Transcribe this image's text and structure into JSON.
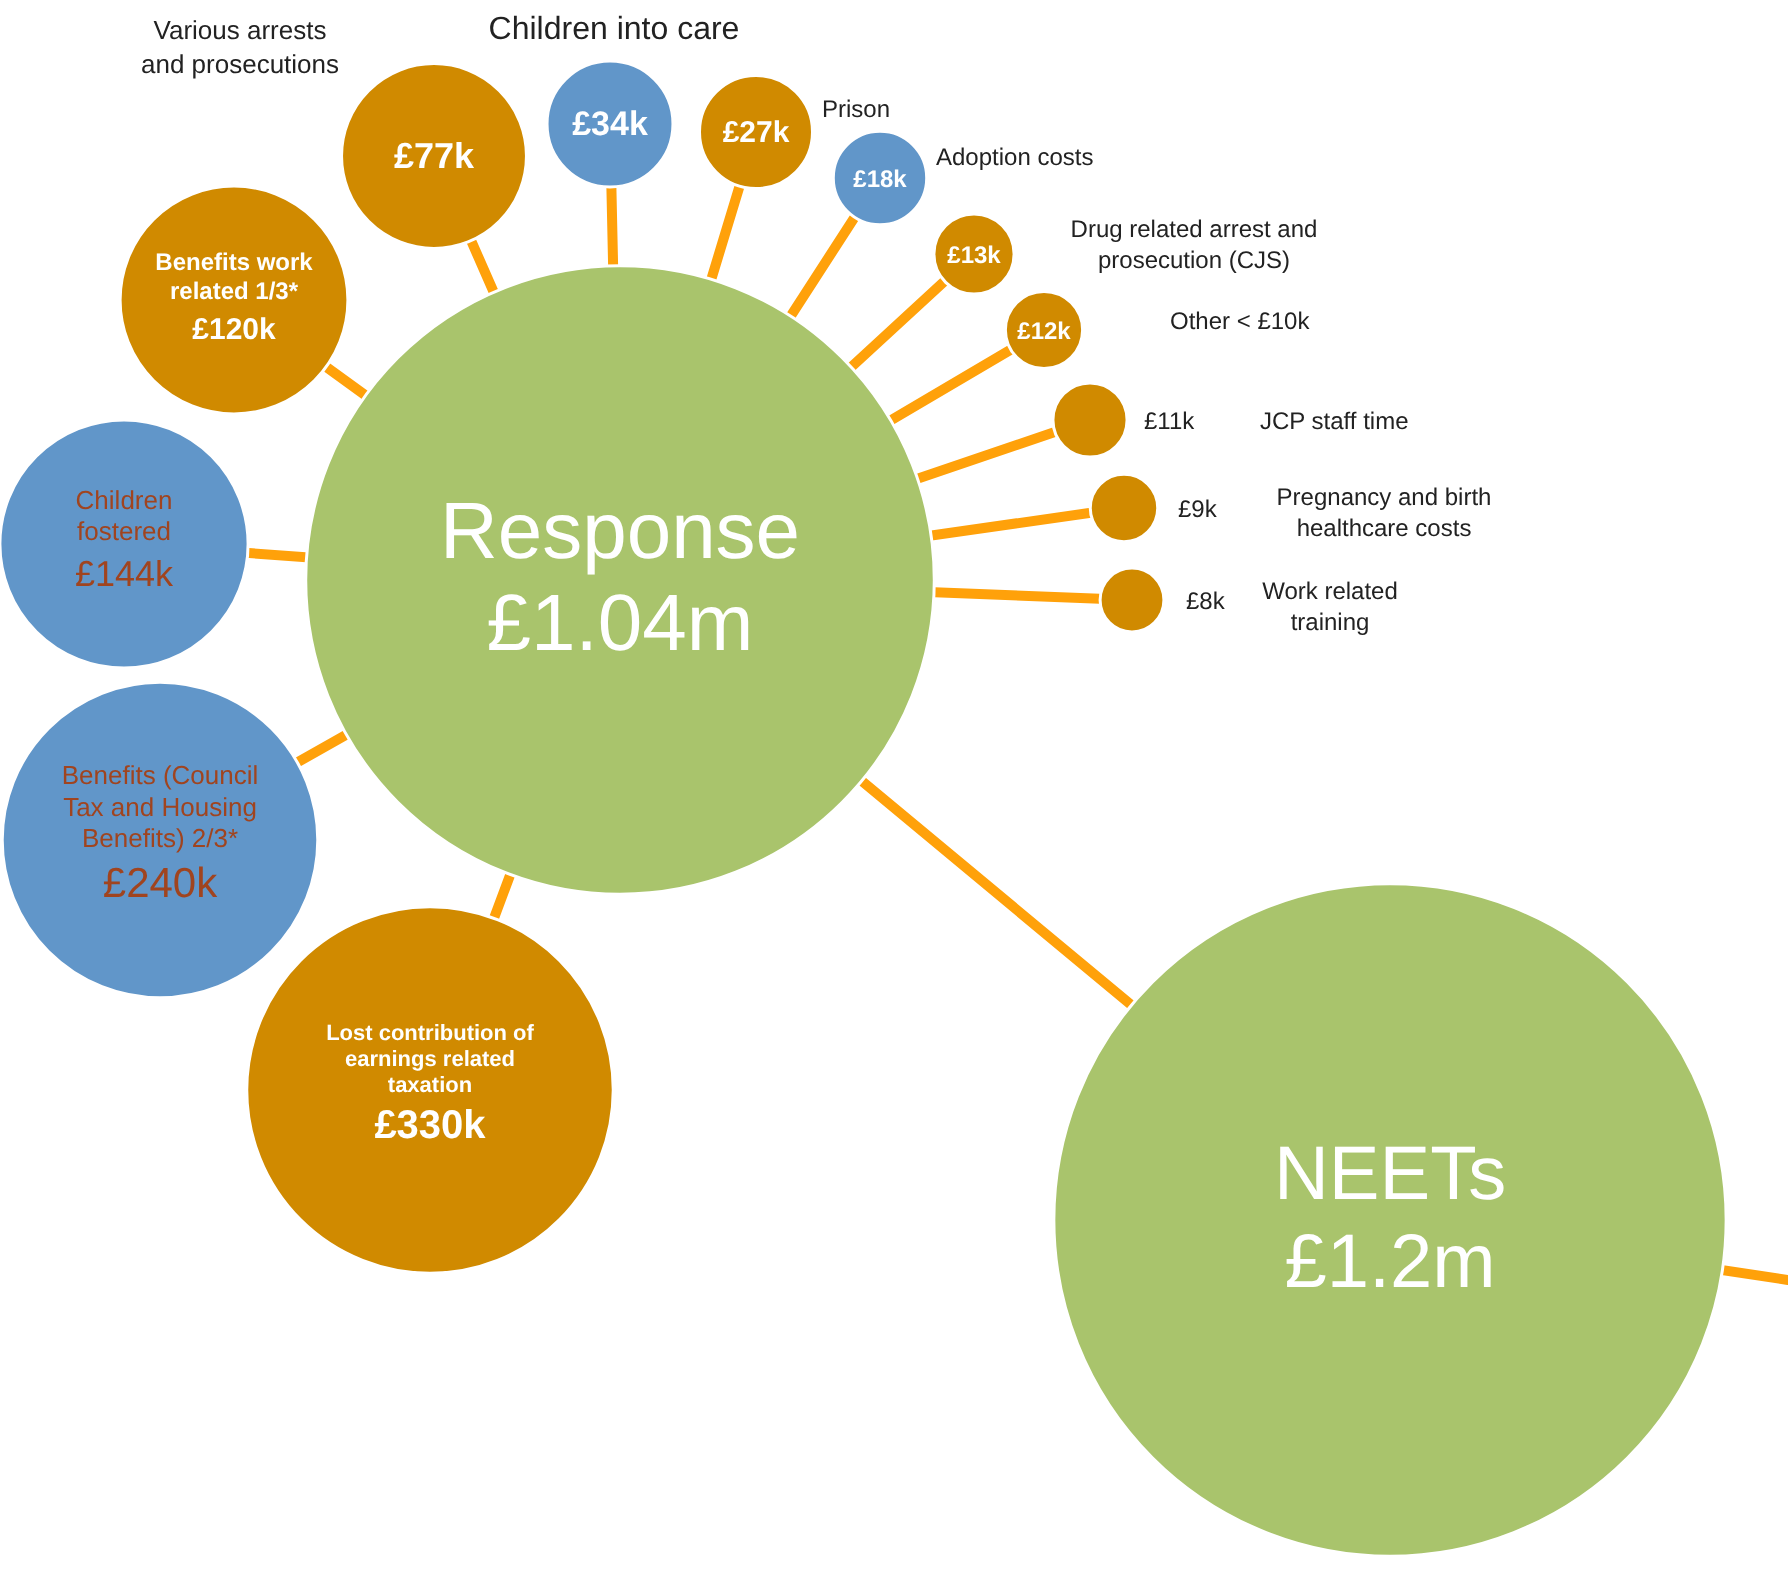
{
  "chart_data": {
    "type": "other",
    "categories": [
      "NEETs",
      "Response",
      "Various arrests and prosecutions",
      "Children into care",
      "Prison",
      "Adoption costs",
      "Drug related arrest and prosecution (CJS)",
      "Other < £10k",
      "JCP staff time",
      "Pregnancy and birth healthcare costs",
      "Work related training",
      "Benefits work related 1/3*",
      "Children fostered",
      "Benefits (Council Tax and Housing Benefits) 2/3*",
      "Lost contribution of earnings related taxation"
    ],
    "values": [
      1200000,
      1040000,
      77000,
      34000,
      27000,
      18000,
      13000,
      12000,
      11000,
      9000,
      8000,
      120000,
      144000,
      240000,
      330000
    ],
    "value_labels": [
      "£1.2m",
      "£1.04m",
      "£77k",
      "£34k",
      "£27k",
      "£18k",
      "£13k",
      "£12k",
      "£11k",
      "£9k",
      "£8k",
      "£120k",
      "£144k",
      "£240k",
      "£330k"
    ],
    "colors": [
      "#a9c46c",
      "#a9c46c",
      "#d08a00",
      "#6196c9",
      "#d08a00",
      "#6196c9",
      "#d08a00",
      "#d08a00",
      "#d08a00",
      "#d08a00",
      "#d08a00",
      "#d08a00",
      "#6196c9",
      "#6196c9",
      "#d08a00"
    ]
  }
}
